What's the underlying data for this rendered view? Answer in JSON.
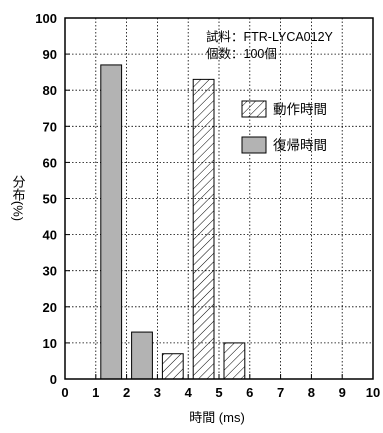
{
  "chart_data": {
    "type": "bar",
    "xlabel": "時間 (ms)",
    "ylabel": "分布(%)",
    "xlim": [
      0,
      10
    ],
    "ylim": [
      0,
      100
    ],
    "x_ticks": [
      "0",
      "1",
      "2",
      "3",
      "4",
      "5",
      "6",
      "7",
      "8",
      "9",
      "10"
    ],
    "y_ticks": [
      "0",
      "10",
      "20",
      "30",
      "40",
      "50",
      "60",
      "70",
      "80",
      "90",
      "100"
    ],
    "grid": true,
    "legend_position": "right",
    "annotations": [
      "試料：FTR-LYCA012Y",
      "個数：100個"
    ],
    "series": [
      {
        "name": "動作時間",
        "fill": "hatched",
        "color": "#ffffff",
        "bins": [
          {
            "x0": 3,
            "x1": 4,
            "value": 7
          },
          {
            "x0": 4,
            "x1": 5,
            "value": 83
          },
          {
            "x0": 5,
            "x1": 6,
            "value": 10
          }
        ]
      },
      {
        "name": "復帰時間",
        "fill": "solid",
        "color": "#b3b3b3",
        "bins": [
          {
            "x0": 1,
            "x1": 2,
            "value": 87
          },
          {
            "x0": 2,
            "x1": 3,
            "value": 13
          }
        ]
      }
    ]
  }
}
